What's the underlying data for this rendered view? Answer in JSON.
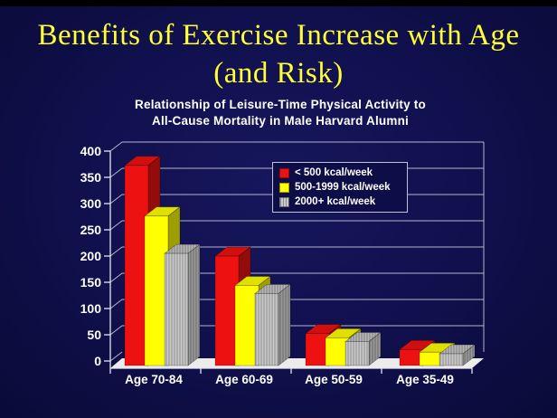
{
  "slide": {
    "title": {
      "line1": "Benefits of Exercise Increase with Age",
      "line2": "(and Risk)",
      "color": "#ffff33"
    },
    "top_bar_color": "#000000",
    "background_center": "#16165d",
    "background_edge": "#0a0a38"
  },
  "chart_data": {
    "type": "bar",
    "style": "3d-clustered-bars",
    "title_line1": "Relationship of Leisure-Time Physical Activity to",
    "title_line2": "All-Cause Mortality in Male Harvard Alumni",
    "categories": [
      "Age 70-84",
      "Age 60-69",
      "Age 50-59",
      "Age 35-49"
    ],
    "series": [
      {
        "name": "< 500 kcal/week",
        "color": "#ee1111",
        "texture": "solid",
        "values": [
          375,
          205,
          60,
          30
        ]
      },
      {
        "name": "500-1999 kcal/week",
        "color": "#ffff00",
        "texture": "solid",
        "values": [
          280,
          150,
          52,
          25
        ]
      },
      {
        "name": "2000+ kcal/week",
        "color": "#c0c0c0",
        "texture": "vertical-lines",
        "values": [
          210,
          135,
          45,
          22
        ]
      }
    ],
    "ylim": [
      0,
      400
    ],
    "ytick_step": 50,
    "grid": true,
    "legend_position": "upper-right-inside",
    "axis_text_color": "#ffffff",
    "gridline_color": "#c7c7da",
    "floor_color": "#ececec"
  }
}
